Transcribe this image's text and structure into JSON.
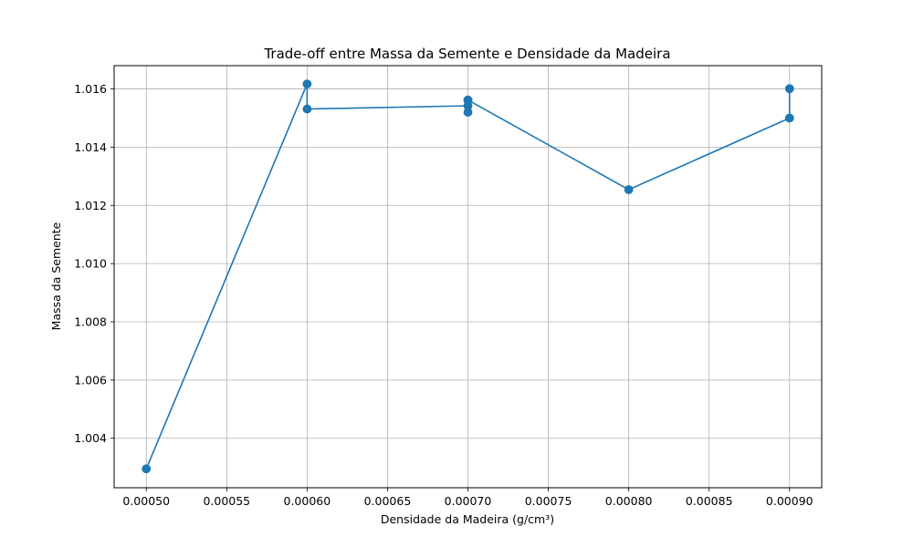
{
  "chart_data": {
    "type": "line",
    "title": "Trade-off entre Massa da Semente e Densidade da Madeira",
    "xlabel": "Densidade da Madeira (g/cm³)",
    "ylabel": "Massa da Semente",
    "xlim": [
      0.00048,
      0.00092
    ],
    "ylim": [
      1.0023,
      1.0168
    ],
    "x_ticks": [
      0.0005,
      0.00055,
      0.0006,
      0.00065,
      0.0007,
      0.00075,
      0.0008,
      0.00085,
      0.0009
    ],
    "x_tick_labels": [
      "0.00050",
      "0.00055",
      "0.00060",
      "0.00065",
      "0.00070",
      "0.00075",
      "0.00080",
      "0.00085",
      "0.00090"
    ],
    "y_ticks": [
      1.004,
      1.006,
      1.008,
      1.01,
      1.012,
      1.014,
      1.016
    ],
    "y_tick_labels": [
      "1.004",
      "1.006",
      "1.008",
      "1.010",
      "1.012",
      "1.014",
      "1.016"
    ],
    "grid": true,
    "series": [
      {
        "color": "#1f77b4",
        "marker": "circle",
        "points": [
          {
            "x": 0.0005,
            "y": 1.00295
          },
          {
            "x": 0.0006,
            "y": 1.01617
          },
          {
            "x": 0.0006,
            "y": 1.01531
          },
          {
            "x": 0.0007,
            "y": 1.01542
          },
          {
            "x": 0.0007,
            "y": 1.01561
          },
          {
            "x": 0.0007,
            "y": 1.0152
          },
          {
            "x": 0.0007,
            "y": 1.01562
          },
          {
            "x": 0.0008,
            "y": 1.01254
          },
          {
            "x": 0.0009,
            "y": 1.015
          },
          {
            "x": 0.0009,
            "y": 1.01601
          }
        ]
      }
    ]
  }
}
